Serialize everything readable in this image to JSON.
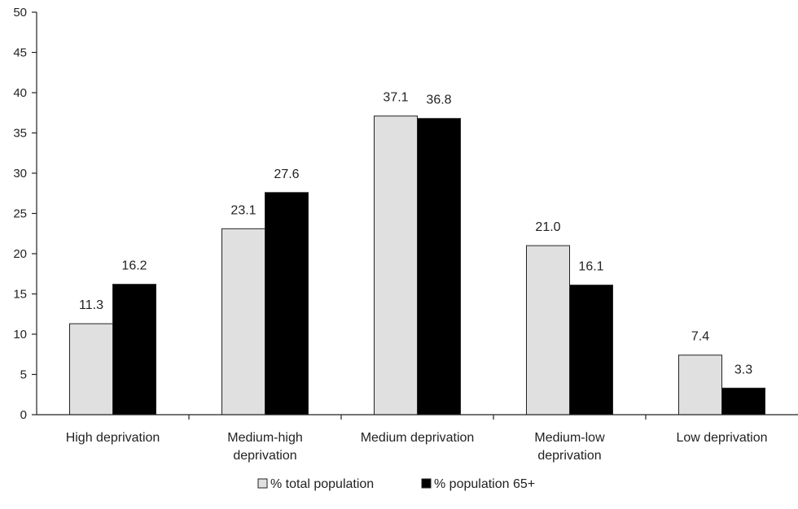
{
  "chart_data": {
    "type": "bar",
    "categories": [
      [
        "High deprivation"
      ],
      [
        "Medium-high",
        "deprivation"
      ],
      [
        "Medium deprivation"
      ],
      [
        "Medium-low",
        "deprivation"
      ],
      [
        "Low deprivation"
      ]
    ],
    "series": [
      {
        "name": "% total population",
        "values": [
          11.3,
          23.1,
          37.1,
          21.0,
          7.4
        ],
        "labels": [
          "11.3",
          "23.1",
          "37.1",
          "21.0",
          "7.4"
        ],
        "color": "#e0e0e0"
      },
      {
        "name": "% population 65+",
        "values": [
          16.2,
          27.6,
          36.8,
          16.1,
          3.3
        ],
        "labels": [
          "16.2",
          "27.6",
          "36.8",
          "16.1",
          "3.3"
        ],
        "color": "#000000"
      }
    ],
    "yticks": [
      "0",
      "5",
      "10",
      "15",
      "20",
      "25",
      "30",
      "35",
      "40",
      "45",
      "50"
    ],
    "ylim": [
      0,
      50
    ],
    "grid": false,
    "legend_position": "bottom-center"
  }
}
